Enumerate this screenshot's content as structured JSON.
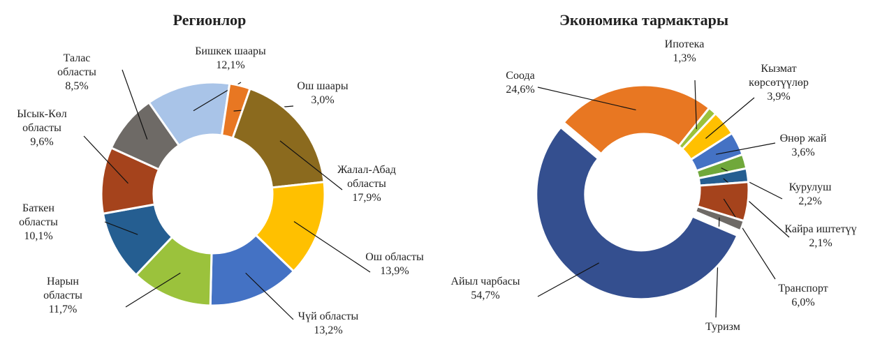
{
  "chart_data": [
    {
      "type": "donut",
      "title": "Регионлор",
      "categories": [
        "Бишкек шаары",
        "Ош шаары",
        "Жалал-Абад\nобласты",
        "Ош областы",
        "Чүй областы",
        "Нарын\nобласты",
        "Баткен\nобласты",
        "Ысык-Көл\nобласты",
        "Талас\nобласты"
      ],
      "values": [
        12.1,
        3.0,
        17.9,
        13.9,
        13.2,
        11.7,
        10.1,
        9.6,
        8.5
      ],
      "value_labels": [
        "12,1%",
        "3,0%",
        "17,9%",
        "13,9%",
        "13,2%",
        "11,7%",
        "10,1%",
        "9,6%",
        "8,5%"
      ],
      "colors": [
        "#a9c4e8",
        "#e87722",
        "#8b6a1e",
        "#ffc000",
        "#4472c4",
        "#9bc23c",
        "#255e91",
        "#a5431c",
        "#6e6a66"
      ]
    },
    {
      "type": "donut",
      "title": "Экономика тармактары",
      "categories": [
        "Соода",
        "Ипотека",
        "Кызмат\nкөрсөтүүлөр",
        "Өнөр жай",
        "Курулуш",
        "Кайра иштетүү",
        "Транспорт",
        "Туризм",
        "Айыл чарбасы"
      ],
      "values": [
        24.6,
        1.3,
        3.9,
        3.6,
        2.2,
        2.1,
        6.0,
        1.6,
        54.7
      ],
      "value_labels": [
        "24,6%",
        "1,3%",
        "3,9%",
        "3,6%",
        "2,2%",
        "2,1%",
        "6,0%",
        null,
        "54,7%"
      ],
      "colors": [
        "#e87722",
        "#9bc23c",
        "#ffc000",
        "#4472c4",
        "#70a83b",
        "#255e91",
        "#a5431c",
        "#6e6a66",
        "#344f8f"
      ]
    }
  ]
}
